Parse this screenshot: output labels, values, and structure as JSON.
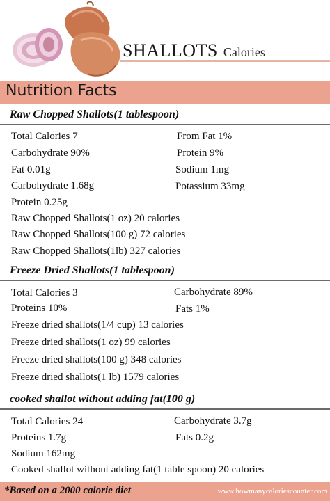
{
  "header": {
    "title": "SHALLOTS",
    "subtitle": "Calories"
  },
  "banner": {
    "label": "Nutrition Facts"
  },
  "sections": [
    {
      "heading": "Raw Chopped Shallots(1 tablespoon)",
      "left": [
        "Total Calories 7",
        "Carbohydrate 90%",
        "Fat 0.01g",
        "Carbohydrate 1.68g",
        "Protein 0.25g"
      ],
      "right": [
        "From Fat 1%",
        "Protein 9%",
        "Sodium 1mg",
        "Potassium 33mg"
      ],
      "lines": [
        "Raw Chopped Shallots(1 oz) 20 calories",
        "Raw Chopped Shallots(100 g) 72 calories",
        "Raw Chopped Shallots(1lb) 327 calories"
      ]
    },
    {
      "heading": "Freeze Dried Shallots(1 tablespoon)",
      "left": [
        "Total Calories 3",
        "Proteins 10%"
      ],
      "right": [
        "Carbohydrate 89%",
        "Fats 1%"
      ],
      "lines": [
        "Freeze dried shallots(1/4 cup) 13 calories",
        "Freeze dried shallots(1 oz) 99 calories",
        "Freeze dried shallots(100 g) 348 calories",
        "Freeze dried shallots(1 lb) 1579 calories"
      ]
    },
    {
      "heading": "cooked shallot without adding fat(100 g)",
      "left": [
        "Total Calories 24",
        "Proteins 1.7g",
        "Sodium 162mg"
      ],
      "right": [
        "Carbohydrate 3.7g",
        "Fats 0.2g"
      ],
      "lines": [
        "Cooked shallot without adding fat(1 table spoon) 20 calories"
      ]
    }
  ],
  "footer": {
    "note": "*Based on a 2000 calorie diet",
    "site": "www.howmanycaloriescounter.com"
  },
  "colors": {
    "accent": "#eba28f",
    "rule": "#e6b4a6"
  }
}
